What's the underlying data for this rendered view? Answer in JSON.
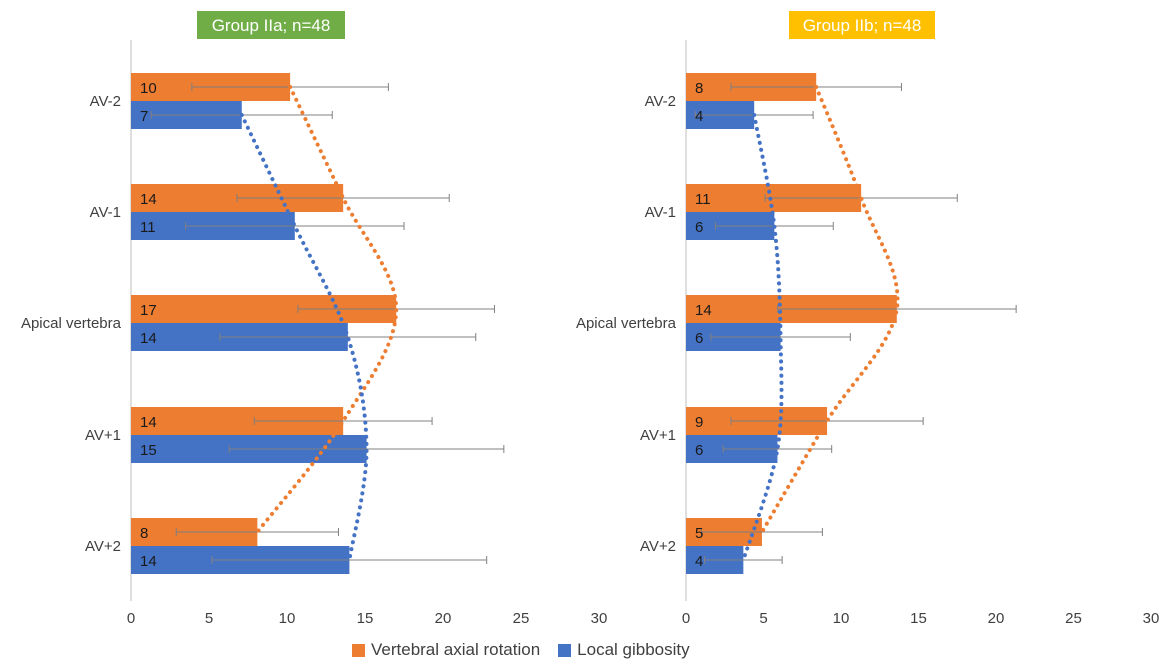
{
  "colors": {
    "orange": "#ED7D31",
    "blue": "#4472C4",
    "title_left_bg": "#70AD47",
    "title_right_bg": "#FFC000",
    "error_bar": "#808080"
  },
  "legend": {
    "items": [
      {
        "label": "Vertebral axial rotation",
        "color": "#ED7D31"
      },
      {
        "label": "Local gibbosity",
        "color": "#4472C4"
      }
    ]
  },
  "chart_data": [
    {
      "type": "bar",
      "orientation": "horizontal",
      "title": "Group IIa; n=48",
      "categories": [
        "AV-2",
        "AV-1",
        "Apical vertebra",
        "AV+1",
        "AV+2"
      ],
      "xlim": [
        0,
        30
      ],
      "x_ticks": [
        0,
        5,
        10,
        15,
        20,
        25,
        30
      ],
      "grid": false,
      "legend": "bottom",
      "series": [
        {
          "name": "Vertebral axial rotation",
          "color": "#ED7D31",
          "values": [
            10.2,
            13.6,
            17.0,
            13.6,
            8.1
          ],
          "data_labels": [
            "10",
            "14",
            "17",
            "14",
            "8"
          ],
          "error": [
            6.3,
            6.8,
            6.3,
            5.7,
            5.2
          ],
          "trendline": "dotted"
        },
        {
          "name": "Local gibbosity",
          "color": "#4472C4",
          "values": [
            7.1,
            10.5,
            13.9,
            15.1,
            14.0
          ],
          "data_labels": [
            "7",
            "11",
            "14",
            "15",
            "14"
          ],
          "error": [
            5.8,
            7.0,
            8.2,
            8.8,
            8.8
          ],
          "trendline": "dotted"
        }
      ]
    },
    {
      "type": "bar",
      "orientation": "horizontal",
      "title": "Group IIb; n=48",
      "categories": [
        "AV-2",
        "AV-1",
        "Apical vertebra",
        "AV+1",
        "AV+2"
      ],
      "xlim": [
        0,
        30
      ],
      "x_ticks": [
        0,
        5,
        10,
        15,
        20,
        25,
        30
      ],
      "grid": false,
      "legend": "bottom",
      "series": [
        {
          "name": "Vertebral axial rotation",
          "color": "#ED7D31",
          "values": [
            8.4,
            11.3,
            13.6,
            9.1,
            4.9
          ],
          "data_labels": [
            "8",
            "11",
            "14",
            "9",
            "5"
          ],
          "error": [
            5.5,
            6.2,
            7.7,
            6.2,
            3.9
          ],
          "trendline": "dotted"
        },
        {
          "name": "Local gibbosity",
          "color": "#4472C4",
          "values": [
            4.4,
            5.7,
            6.1,
            5.9,
            3.7
          ],
          "data_labels": [
            "4",
            "6",
            "6",
            "6",
            "4"
          ],
          "error": [
            3.8,
            3.8,
            4.5,
            3.5,
            2.5
          ],
          "trendline": "dotted"
        }
      ]
    }
  ]
}
